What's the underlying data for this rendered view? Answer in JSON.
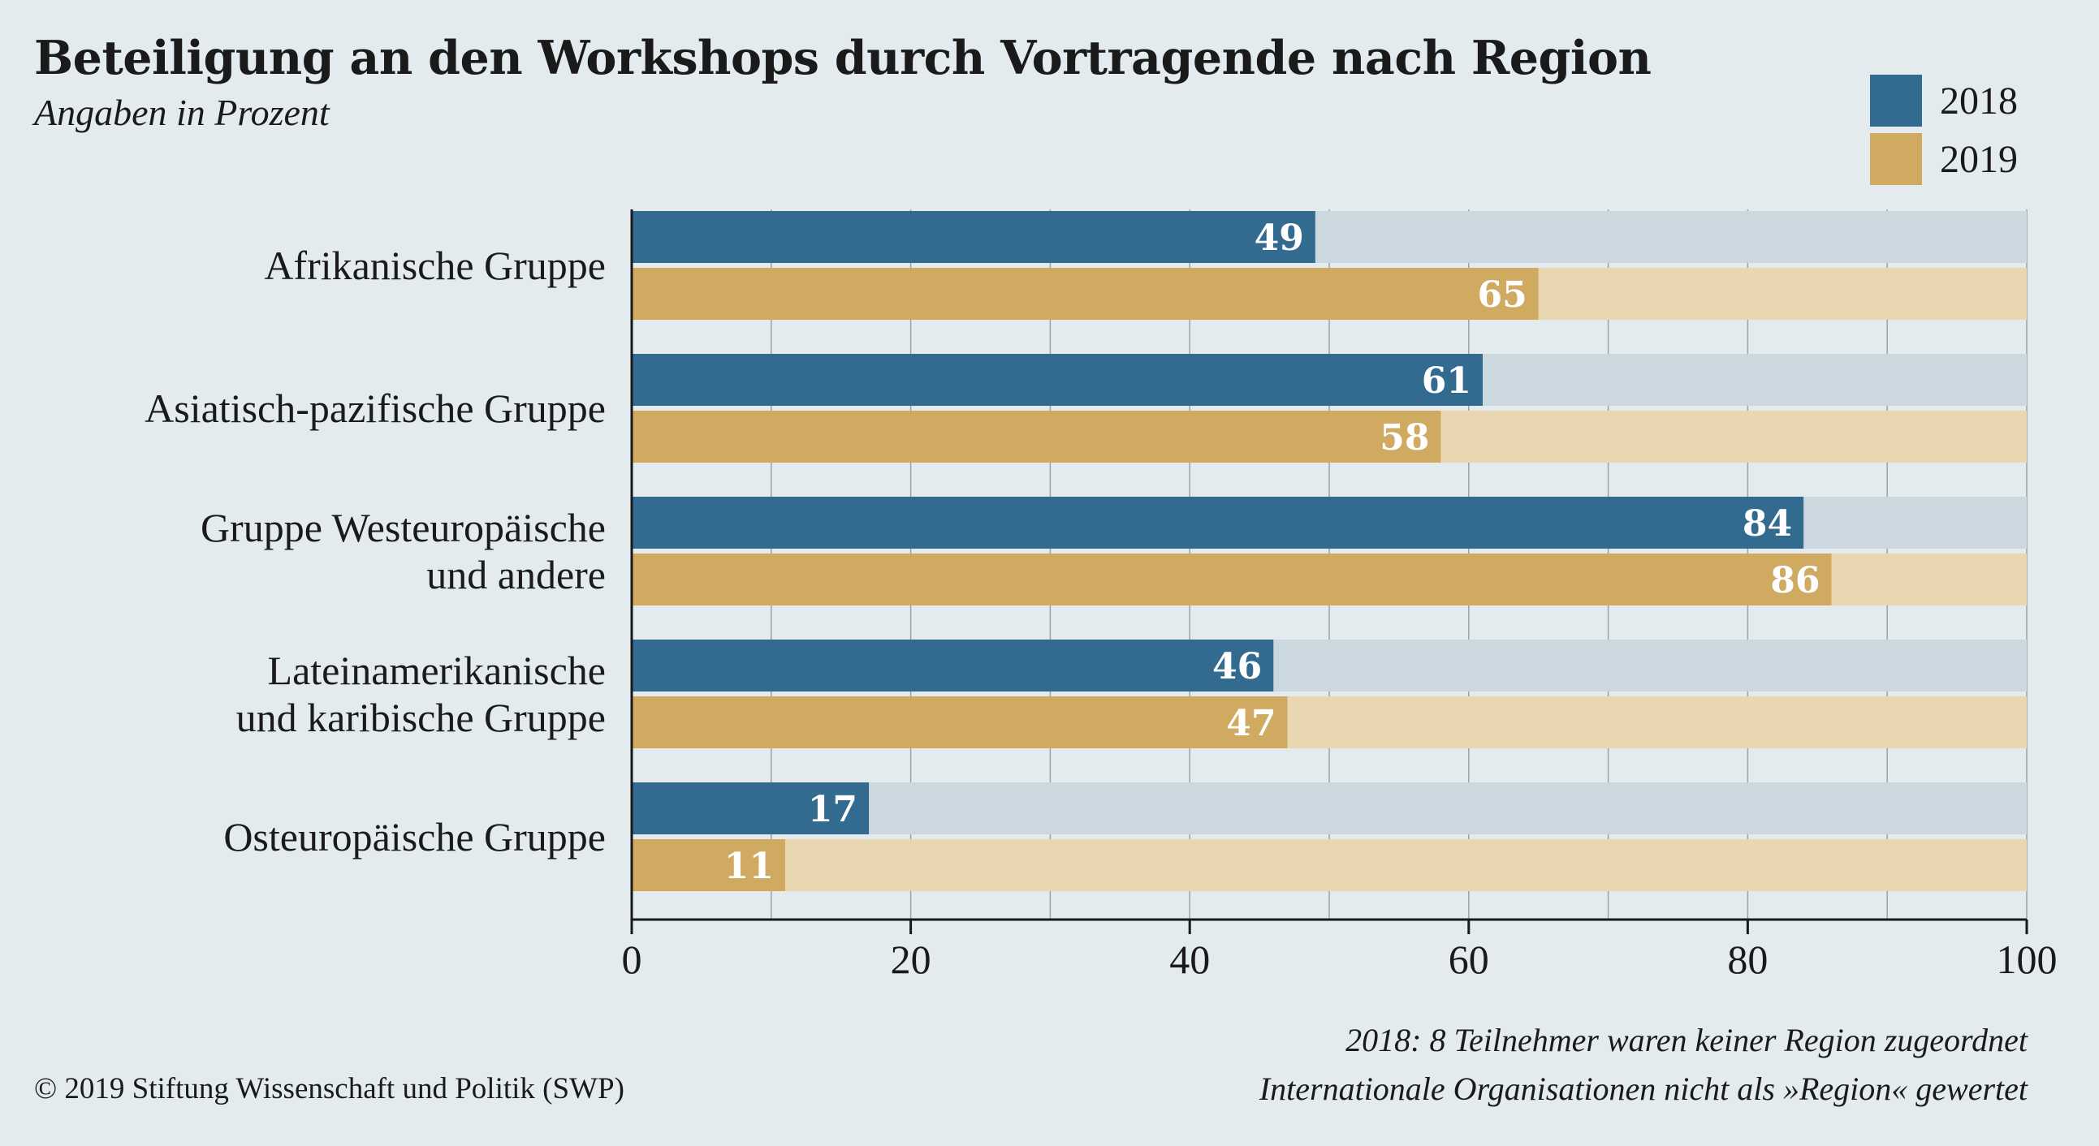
{
  "header": {
    "title": "Beteiligung an den Workshops durch Vortragende nach Region",
    "subtitle": "Angaben in Prozent"
  },
  "legend": [
    {
      "label": "2018",
      "color": "#336a8f"
    },
    {
      "label": "2019",
      "color": "#cfaa60"
    }
  ],
  "notes": {
    "note_1": "2018: 8 Teilnehmer waren keiner Region zugeordnet",
    "note_2": "Internationale Organisationen nicht als »Region« gewertet"
  },
  "copyright": "© 2019 Stiftung Wissenschaft und Politik (SWP)",
  "chart_data": {
    "type": "bar",
    "orientation": "horizontal",
    "categories": [
      [
        "Afrikanische Gruppe"
      ],
      [
        "Asiatisch-pazifische Gruppe"
      ],
      [
        "Gruppe Westeuropäische",
        "und andere"
      ],
      [
        "Lateinamerikanische",
        "und karibische Gruppe"
      ],
      [
        "Osteuropäische Gruppe"
      ]
    ],
    "series": [
      {
        "name": "2018",
        "values": [
          49,
          61,
          84,
          46,
          17
        ],
        "color": "#336a8f",
        "track_color": "#cbd8e0"
      },
      {
        "name": "2019",
        "values": [
          65,
          58,
          86,
          47,
          11
        ],
        "color": "#cfaa60",
        "track_color": "#e8d7b1"
      }
    ],
    "xlim": [
      0,
      100
    ],
    "x_ticks": [
      0,
      20,
      40,
      60,
      80,
      100
    ],
    "data_labels": true,
    "grid": true,
    "legend_position": "top-right"
  }
}
